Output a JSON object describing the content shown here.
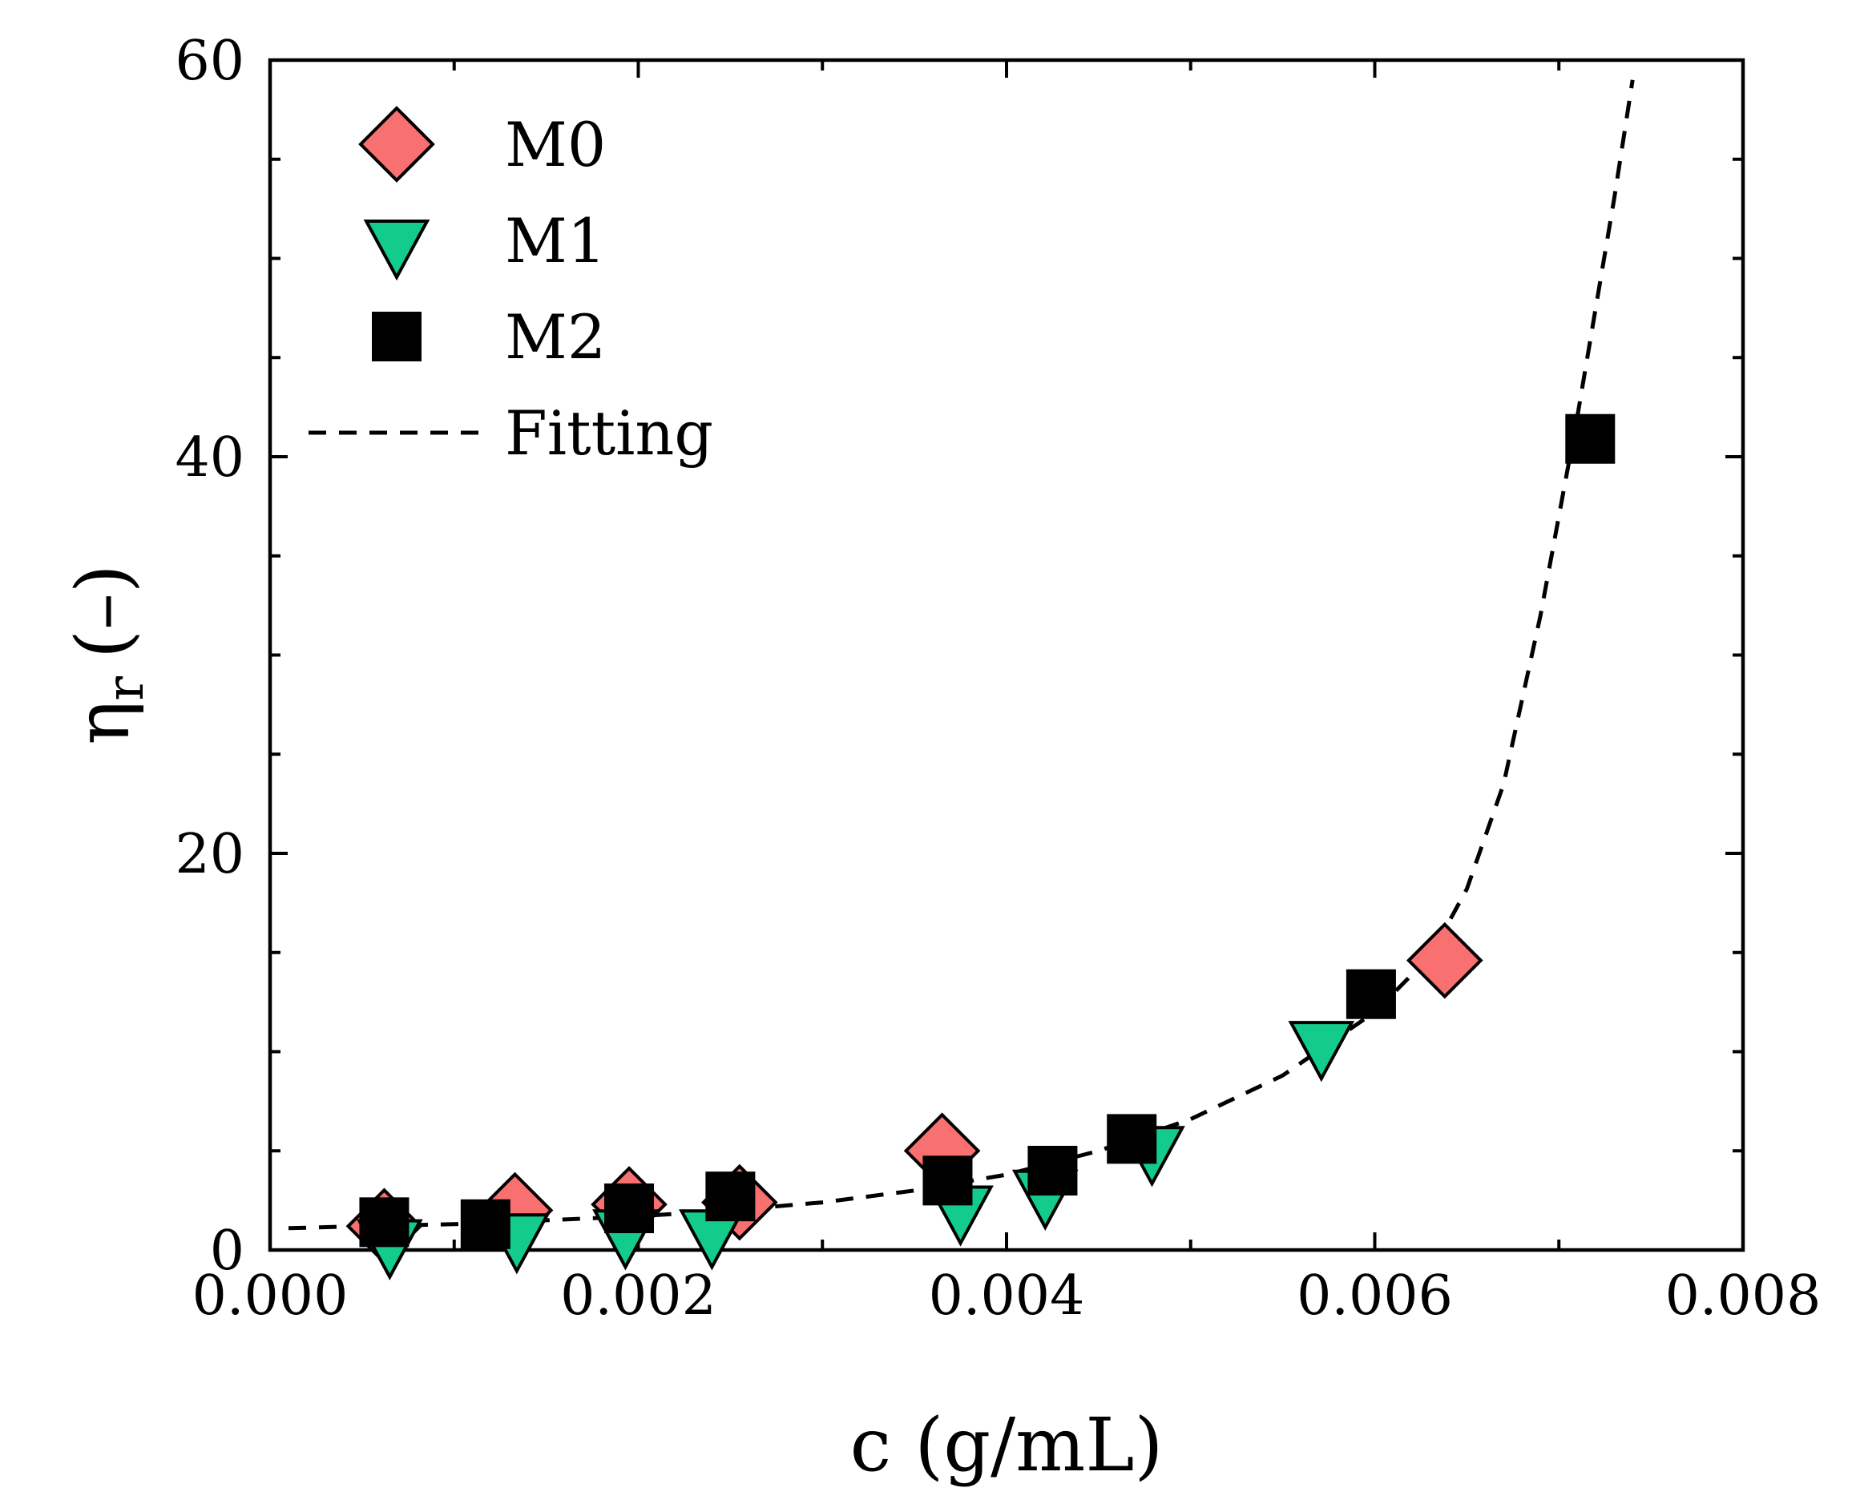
{
  "chart_data": {
    "type": "scatter",
    "xlabel": "c (g/mL)",
    "ylabel": {
      "symbol": "η",
      "subscript": "r",
      "unit": "(–)"
    },
    "xlim": [
      0,
      0.008
    ],
    "ylim": [
      0,
      60
    ],
    "x_ticks": [
      "0.000",
      "0.002",
      "0.004",
      "0.006",
      "0.008"
    ],
    "y_ticks": [
      "0",
      "20",
      "40",
      "60"
    ],
    "grid": false,
    "legend_position": "top-left",
    "series": [
      {
        "name": "M0",
        "marker": "diamond",
        "color": "#F87070",
        "points": [
          [
            0.00062,
            1.2
          ],
          [
            0.00133,
            2.0
          ],
          [
            0.00195,
            2.3
          ],
          [
            0.00255,
            2.4
          ],
          [
            0.00365,
            5.0
          ],
          [
            0.00638,
            14.6
          ]
        ]
      },
      {
        "name": "M1",
        "marker": "triangle-down",
        "color": "#13CC8C",
        "points": [
          [
            0.00065,
            0.5
          ],
          [
            0.00134,
            0.8
          ],
          [
            0.00193,
            1.0
          ],
          [
            0.0024,
            1.0
          ],
          [
            0.00375,
            2.2
          ],
          [
            0.00421,
            3.0
          ],
          [
            0.00479,
            5.2
          ],
          [
            0.00571,
            10.5
          ]
        ]
      },
      {
        "name": "M2",
        "marker": "square",
        "color": "#000000",
        "points": [
          [
            0.00062,
            1.4
          ],
          [
            0.00117,
            1.3
          ],
          [
            0.00195,
            2.1
          ],
          [
            0.0025,
            2.7
          ],
          [
            0.00368,
            3.5
          ],
          [
            0.00425,
            4.0
          ],
          [
            0.00468,
            5.6
          ],
          [
            0.00598,
            12.9
          ],
          [
            0.00717,
            40.9
          ]
        ]
      },
      {
        "name": "Fitting",
        "marker": "dashed-line",
        "color": "#000000",
        "points": [
          [
            0.0001,
            1.1
          ],
          [
            0.0005,
            1.2
          ],
          [
            0.001,
            1.3
          ],
          [
            0.0015,
            1.5
          ],
          [
            0.002,
            1.7
          ],
          [
            0.0025,
            2.0
          ],
          [
            0.003,
            2.4
          ],
          [
            0.0035,
            3.0
          ],
          [
            0.004,
            3.8
          ],
          [
            0.0045,
            5.0
          ],
          [
            0.005,
            6.6
          ],
          [
            0.0055,
            8.8
          ],
          [
            0.006,
            12.0
          ],
          [
            0.0063,
            14.8
          ],
          [
            0.0065,
            18.2
          ],
          [
            0.0067,
            23.5
          ],
          [
            0.0069,
            32.0
          ],
          [
            0.0071,
            42.0
          ],
          [
            0.0073,
            53.0
          ],
          [
            0.0074,
            59.0
          ]
        ]
      }
    ]
  }
}
